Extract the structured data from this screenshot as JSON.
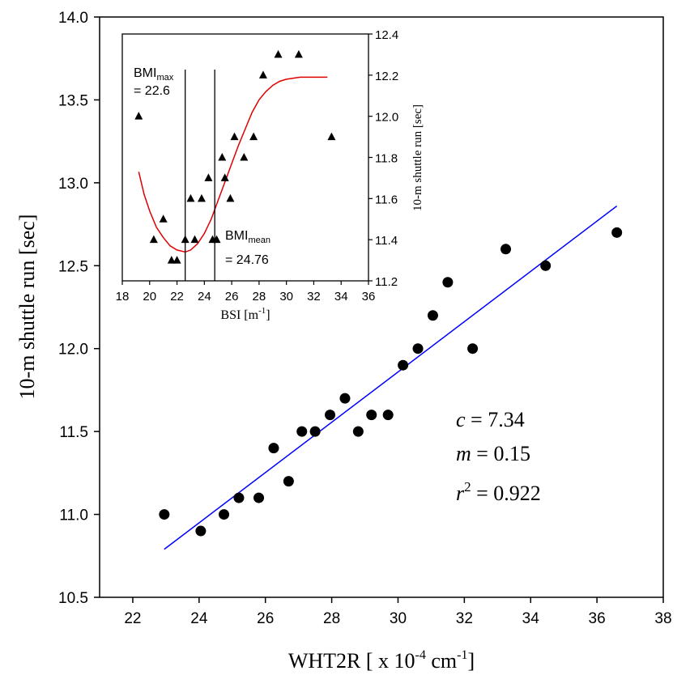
{
  "chart_data": [
    {
      "type": "scatter",
      "xlabel": "WHT2R [ x 10",
      "xlabel_exp": "-4",
      "xlabel_unit": " cm",
      "xlabel_unit_exp": "-1",
      "xlabel_close": "]",
      "ylabel": "10-m shuttle run [sec]",
      "xlim": [
        21,
        38
      ],
      "ylim": [
        10.5,
        14.0
      ],
      "xticks": [
        22,
        24,
        26,
        28,
        30,
        32,
        34,
        36,
        38
      ],
      "yticks": [
        10.5,
        11.0,
        11.5,
        12.0,
        12.5,
        13.0,
        13.5,
        14.0
      ],
      "points": [
        {
          "x": 22.95,
          "y": 11.0
        },
        {
          "x": 24.05,
          "y": 10.9
        },
        {
          "x": 24.75,
          "y": 11.0
        },
        {
          "x": 25.2,
          "y": 11.1
        },
        {
          "x": 25.8,
          "y": 11.1
        },
        {
          "x": 26.25,
          "y": 11.4
        },
        {
          "x": 26.7,
          "y": 11.2
        },
        {
          "x": 27.1,
          "y": 11.5
        },
        {
          "x": 27.5,
          "y": 11.5
        },
        {
          "x": 27.95,
          "y": 11.6
        },
        {
          "x": 28.4,
          "y": 11.7
        },
        {
          "x": 28.8,
          "y": 11.5
        },
        {
          "x": 29.2,
          "y": 11.6
        },
        {
          "x": 29.7,
          "y": 11.6
        },
        {
          "x": 30.15,
          "y": 11.9
        },
        {
          "x": 30.6,
          "y": 12.0
        },
        {
          "x": 31.05,
          "y": 12.2
        },
        {
          "x": 31.5,
          "y": 12.4
        },
        {
          "x": 32.25,
          "y": 12.0
        },
        {
          "x": 33.25,
          "y": 12.6
        },
        {
          "x": 34.45,
          "y": 12.5
        },
        {
          "x": 36.6,
          "y": 12.7
        }
      ],
      "fit_line": {
        "x": [
          22.95,
          36.6
        ],
        "y": [
          10.79,
          12.86
        ],
        "color": "#0000ff"
      },
      "annotations": [
        {
          "var": "c",
          "text": " = 7.34"
        },
        {
          "var": "m",
          "text": " = 0.15"
        },
        {
          "var": "r",
          "exp": "2",
          "text": " = 0.922"
        }
      ]
    },
    {
      "type": "scatter",
      "xlabel": "BSI [m",
      "xlabel_exp": "-1",
      "xlabel_close": "]",
      "ylabel": "10-m shuttle run [sec]",
      "xlim": [
        18,
        36
      ],
      "ylim": [
        11.2,
        12.4
      ],
      "xticks": [
        18,
        20,
        22,
        24,
        26,
        28,
        30,
        32,
        34,
        36
      ],
      "yticks": [
        11.2,
        11.4,
        11.6,
        11.8,
        12.0,
        12.2,
        12.4
      ],
      "y_axis_side": "right",
      "points": [
        {
          "x": 19.2,
          "y": 12.0
        },
        {
          "x": 20.3,
          "y": 11.4
        },
        {
          "x": 21.0,
          "y": 11.5
        },
        {
          "x": 21.6,
          "y": 11.3
        },
        {
          "x": 22.0,
          "y": 11.3
        },
        {
          "x": 22.6,
          "y": 11.4
        },
        {
          "x": 23.0,
          "y": 11.6
        },
        {
          "x": 23.3,
          "y": 11.4
        },
        {
          "x": 23.8,
          "y": 11.6
        },
        {
          "x": 24.3,
          "y": 11.7
        },
        {
          "x": 24.6,
          "y": 11.4
        },
        {
          "x": 24.9,
          "y": 11.4
        },
        {
          "x": 25.3,
          "y": 11.8
        },
        {
          "x": 25.5,
          "y": 11.7
        },
        {
          "x": 25.9,
          "y": 11.6
        },
        {
          "x": 26.2,
          "y": 11.9
        },
        {
          "x": 26.9,
          "y": 11.8
        },
        {
          "x": 27.6,
          "y": 11.9
        },
        {
          "x": 28.3,
          "y": 12.2
        },
        {
          "x": 29.4,
          "y": 12.3
        },
        {
          "x": 30.9,
          "y": 12.3
        },
        {
          "x": 33.3,
          "y": 11.9
        }
      ],
      "fit_curve": {
        "color": "#e00000",
        "x": [
          19.2,
          19.6,
          20.0,
          20.5,
          21.0,
          21.5,
          22.0,
          22.6,
          23.0,
          23.5,
          24.0,
          24.5,
          25.0,
          25.5,
          26.0,
          26.5,
          27.0,
          27.5,
          28.0,
          28.5,
          29.0,
          29.5,
          30.0,
          30.5,
          31.0,
          32.0,
          33.0
        ],
        "y": [
          11.73,
          11.62,
          11.54,
          11.46,
          11.41,
          11.37,
          11.35,
          11.34,
          11.35,
          11.38,
          11.43,
          11.5,
          11.59,
          11.68,
          11.77,
          11.86,
          11.94,
          12.02,
          12.08,
          12.12,
          12.15,
          12.17,
          12.18,
          12.185,
          12.19,
          12.19,
          12.19
        ]
      },
      "vlines": [
        {
          "x": 22.6,
          "label": "BMI",
          "sub": "max",
          "value": "= 22.6"
        },
        {
          "x": 24.76,
          "label": "BMI",
          "sub": "mean",
          "value": "= 24.76"
        }
      ]
    }
  ]
}
